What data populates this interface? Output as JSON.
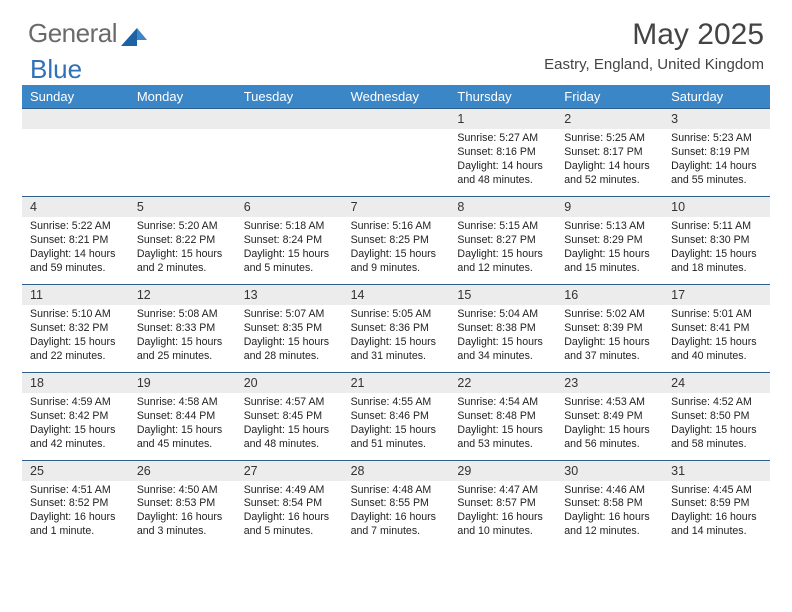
{
  "brand": {
    "part1": "General",
    "part2": "Blue"
  },
  "title": "May 2025",
  "location": "Eastry, England, United Kingdom",
  "colors": {
    "header_bg": "#3b86c6",
    "daynum_bg": "#ececec",
    "border": "#2f5f8a",
    "logo_gray": "#6a6a6a",
    "logo_blue": "#2f72b8"
  },
  "weekdays": [
    "Sunday",
    "Monday",
    "Tuesday",
    "Wednesday",
    "Thursday",
    "Friday",
    "Saturday"
  ],
  "weeks": [
    [
      null,
      null,
      null,
      null,
      {
        "n": "1",
        "sr": "5:27 AM",
        "ss": "8:16 PM",
        "dl": "14 hours and 48 minutes."
      },
      {
        "n": "2",
        "sr": "5:25 AM",
        "ss": "8:17 PM",
        "dl": "14 hours and 52 minutes."
      },
      {
        "n": "3",
        "sr": "5:23 AM",
        "ss": "8:19 PM",
        "dl": "14 hours and 55 minutes."
      }
    ],
    [
      {
        "n": "4",
        "sr": "5:22 AM",
        "ss": "8:21 PM",
        "dl": "14 hours and 59 minutes."
      },
      {
        "n": "5",
        "sr": "5:20 AM",
        "ss": "8:22 PM",
        "dl": "15 hours and 2 minutes."
      },
      {
        "n": "6",
        "sr": "5:18 AM",
        "ss": "8:24 PM",
        "dl": "15 hours and 5 minutes."
      },
      {
        "n": "7",
        "sr": "5:16 AM",
        "ss": "8:25 PM",
        "dl": "15 hours and 9 minutes."
      },
      {
        "n": "8",
        "sr": "5:15 AM",
        "ss": "8:27 PM",
        "dl": "15 hours and 12 minutes."
      },
      {
        "n": "9",
        "sr": "5:13 AM",
        "ss": "8:29 PM",
        "dl": "15 hours and 15 minutes."
      },
      {
        "n": "10",
        "sr": "5:11 AM",
        "ss": "8:30 PM",
        "dl": "15 hours and 18 minutes."
      }
    ],
    [
      {
        "n": "11",
        "sr": "5:10 AM",
        "ss": "8:32 PM",
        "dl": "15 hours and 22 minutes."
      },
      {
        "n": "12",
        "sr": "5:08 AM",
        "ss": "8:33 PM",
        "dl": "15 hours and 25 minutes."
      },
      {
        "n": "13",
        "sr": "5:07 AM",
        "ss": "8:35 PM",
        "dl": "15 hours and 28 minutes."
      },
      {
        "n": "14",
        "sr": "5:05 AM",
        "ss": "8:36 PM",
        "dl": "15 hours and 31 minutes."
      },
      {
        "n": "15",
        "sr": "5:04 AM",
        "ss": "8:38 PM",
        "dl": "15 hours and 34 minutes."
      },
      {
        "n": "16",
        "sr": "5:02 AM",
        "ss": "8:39 PM",
        "dl": "15 hours and 37 minutes."
      },
      {
        "n": "17",
        "sr": "5:01 AM",
        "ss": "8:41 PM",
        "dl": "15 hours and 40 minutes."
      }
    ],
    [
      {
        "n": "18",
        "sr": "4:59 AM",
        "ss": "8:42 PM",
        "dl": "15 hours and 42 minutes."
      },
      {
        "n": "19",
        "sr": "4:58 AM",
        "ss": "8:44 PM",
        "dl": "15 hours and 45 minutes."
      },
      {
        "n": "20",
        "sr": "4:57 AM",
        "ss": "8:45 PM",
        "dl": "15 hours and 48 minutes."
      },
      {
        "n": "21",
        "sr": "4:55 AM",
        "ss": "8:46 PM",
        "dl": "15 hours and 51 minutes."
      },
      {
        "n": "22",
        "sr": "4:54 AM",
        "ss": "8:48 PM",
        "dl": "15 hours and 53 minutes."
      },
      {
        "n": "23",
        "sr": "4:53 AM",
        "ss": "8:49 PM",
        "dl": "15 hours and 56 minutes."
      },
      {
        "n": "24",
        "sr": "4:52 AM",
        "ss": "8:50 PM",
        "dl": "15 hours and 58 minutes."
      }
    ],
    [
      {
        "n": "25",
        "sr": "4:51 AM",
        "ss": "8:52 PM",
        "dl": "16 hours and 1 minute."
      },
      {
        "n": "26",
        "sr": "4:50 AM",
        "ss": "8:53 PM",
        "dl": "16 hours and 3 minutes."
      },
      {
        "n": "27",
        "sr": "4:49 AM",
        "ss": "8:54 PM",
        "dl": "16 hours and 5 minutes."
      },
      {
        "n": "28",
        "sr": "4:48 AM",
        "ss": "8:55 PM",
        "dl": "16 hours and 7 minutes."
      },
      {
        "n": "29",
        "sr": "4:47 AM",
        "ss": "8:57 PM",
        "dl": "16 hours and 10 minutes."
      },
      {
        "n": "30",
        "sr": "4:46 AM",
        "ss": "8:58 PM",
        "dl": "16 hours and 12 minutes."
      },
      {
        "n": "31",
        "sr": "4:45 AM",
        "ss": "8:59 PM",
        "dl": "16 hours and 14 minutes."
      }
    ]
  ],
  "labels": {
    "sunrise": "Sunrise:",
    "sunset": "Sunset:",
    "daylight": "Daylight:"
  }
}
